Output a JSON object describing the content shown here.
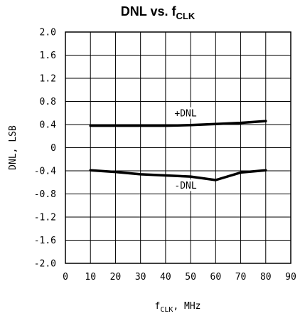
{
  "chart_data": {
    "type": "line",
    "title": {
      "main": "DNL vs. f",
      "sub": "CLK"
    },
    "xlabel": {
      "main": "f",
      "sub": "CLK",
      "suffix": ", MHz"
    },
    "ylabel": "DNL, LSB",
    "xlim": [
      0,
      90
    ],
    "ylim": [
      -2.0,
      2.0
    ],
    "x_ticks": [
      "0",
      "10",
      "20",
      "30",
      "40",
      "50",
      "60",
      "70",
      "80",
      "90"
    ],
    "y_ticks": [
      "2.0",
      "1.6",
      "1.2",
      "0.8",
      "0.4",
      "0",
      "-0.4",
      "-0.8",
      "-1.2",
      "-1.6",
      "-2.0"
    ],
    "grid": true,
    "series": [
      {
        "name": "+DNL",
        "x": [
          10,
          20,
          30,
          40,
          50,
          60,
          70,
          80
        ],
        "y": [
          0.38,
          0.38,
          0.38,
          0.38,
          0.39,
          0.41,
          0.43,
          0.46
        ]
      },
      {
        "name": "-DNL",
        "x": [
          10,
          20,
          30,
          40,
          50,
          60,
          70,
          80
        ],
        "y": [
          -0.39,
          -0.42,
          -0.46,
          -0.48,
          -0.5,
          -0.56,
          -0.43,
          -0.39
        ]
      }
    ],
    "annotations": [
      {
        "text": "+DNL",
        "x": 48,
        "y": 0.6
      },
      {
        "text": "-DNL",
        "x": 48,
        "y": -0.65
      }
    ]
  }
}
